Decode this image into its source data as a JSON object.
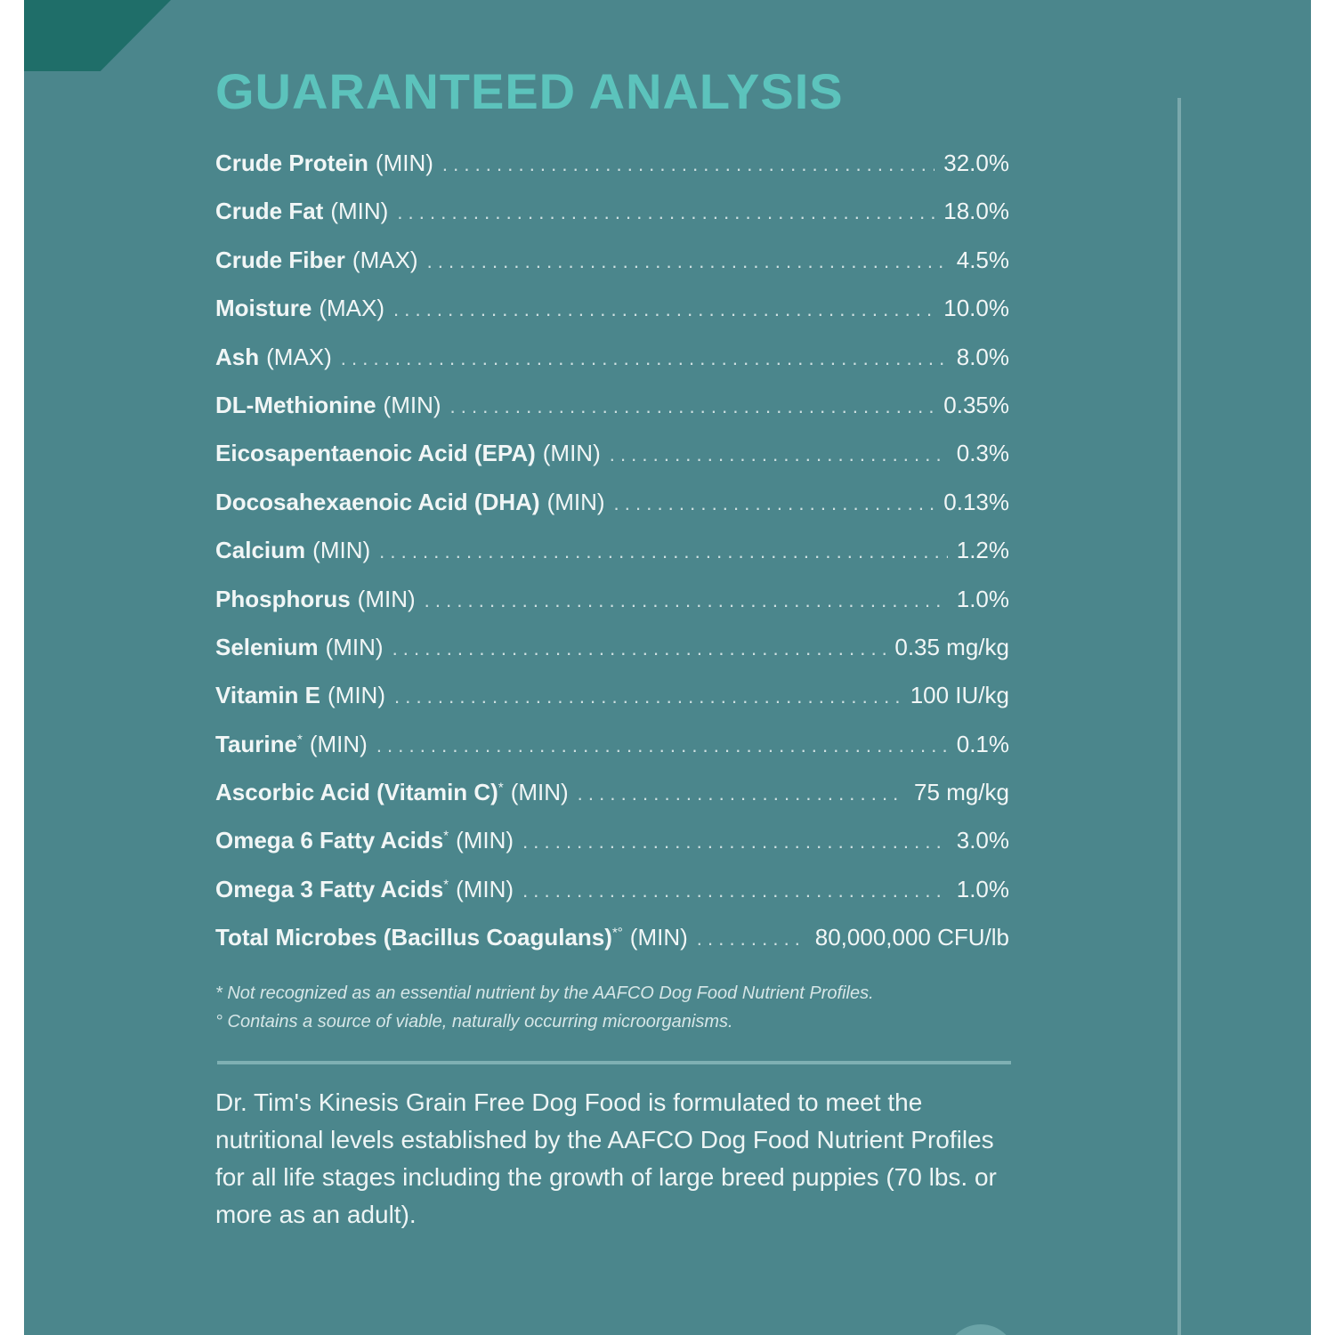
{
  "title": "GUARANTEED ANALYSIS",
  "rows": [
    {
      "name": "Crude Protein",
      "asterisk": "",
      "qualifier": "(MIN)",
      "value": "32.0%"
    },
    {
      "name": "Crude Fat",
      "asterisk": "",
      "qualifier": "(MIN)",
      "value": "18.0%"
    },
    {
      "name": "Crude Fiber",
      "asterisk": "",
      "qualifier": "(MAX)",
      "value": "4.5%"
    },
    {
      "name": "Moisture",
      "asterisk": "",
      "qualifier": "(MAX)",
      "value": "10.0%"
    },
    {
      "name": "Ash",
      "asterisk": "",
      "qualifier": "(MAX)",
      "value": "8.0%"
    },
    {
      "name": "DL-Methionine",
      "asterisk": "",
      "qualifier": "(MIN)",
      "value": "0.35%"
    },
    {
      "name": "Eicosapentaenoic Acid (EPA)",
      "asterisk": "",
      "qualifier": "(MIN)",
      "value": "0.3%"
    },
    {
      "name": "Docosahexaenoic Acid (DHA)",
      "asterisk": "",
      "qualifier": "(MIN)",
      "value": "0.13%"
    },
    {
      "name": "Calcium",
      "asterisk": "",
      "qualifier": "(MIN)",
      "value": "1.2%"
    },
    {
      "name": "Phosphorus",
      "asterisk": "",
      "qualifier": "(MIN)",
      "value": "1.0%"
    },
    {
      "name": "Selenium",
      "asterisk": "",
      "qualifier": "(MIN)",
      "value": "0.35 mg/kg"
    },
    {
      "name": "Vitamin E",
      "asterisk": "",
      "qualifier": "(MIN)",
      "value": "100 IU/kg"
    },
    {
      "name": "Taurine",
      "asterisk": "*",
      "qualifier": "(MIN)",
      "value": "0.1%"
    },
    {
      "name": "Ascorbic Acid (Vitamin C)",
      "asterisk": "*",
      "qualifier": "(MIN)",
      "value": "75 mg/kg"
    },
    {
      "name": "Omega 6 Fatty Acids",
      "asterisk": "*",
      "qualifier": "(MIN)",
      "value": "3.0%"
    },
    {
      "name": "Omega 3 Fatty Acids",
      "asterisk": "*",
      "qualifier": "(MIN)",
      "value": "1.0%"
    },
    {
      "name": "Total Microbes (Bacillus Coagulans)",
      "asterisk": "*°",
      "qualifier": "(MIN)",
      "value": "80,000,000 CFU/lb"
    }
  ],
  "footnotes": [
    "* Not recognized as an essential nutrient by the AAFCO Dog Food Nutrient Profiles.",
    "° Contains a source of viable, naturally occurring microorganisms."
  ],
  "statement": "Dr. Tim's Kinesis Grain Free Dog Food is formulated to meet the nutritional levels established by the AAFCO Dog Food Nutrient Profiles for all life stages including the growth of large breed puppies (70 lbs. or more as an adult).",
  "colors": {
    "panel_background": "#4b868c",
    "title": "#5cc3bc",
    "corner_tab": "#1f6e69"
  }
}
